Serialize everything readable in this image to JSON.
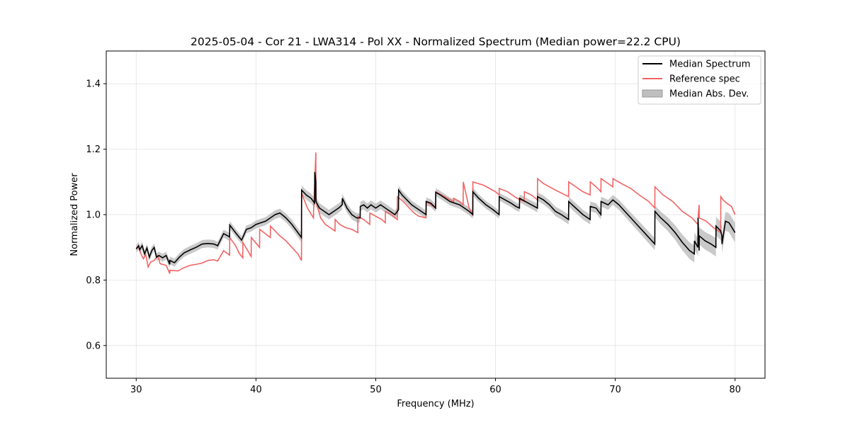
{
  "chart_data": {
    "type": "line",
    "title": "2025-05-04 - Cor 21 - LWA314 - Pol XX - Normalized Spectrum (Median power=22.2 CPU)",
    "xlabel": "Frequency (MHz)",
    "ylabel": "Normalized Power",
    "xlim": [
      27.5,
      82.5
    ],
    "ylim": [
      0.5,
      1.5
    ],
    "xticks": [
      30,
      40,
      50,
      60,
      70,
      80
    ],
    "yticks": [
      0.6,
      0.8,
      1.0,
      1.2,
      1.4
    ],
    "xtick_labels": [
      "30",
      "40",
      "50",
      "60",
      "70",
      "80"
    ],
    "ytick_labels": [
      "0.6",
      "0.8",
      "1.0",
      "1.2",
      "1.4"
    ],
    "grid": true,
    "legend_position": "top-right",
    "legend": [
      "Median Spectrum",
      "Reference spec",
      "Median Abs. Dev."
    ],
    "series": [
      {
        "name": "Median Spectrum",
        "color": "#000000",
        "x": [
          30.0,
          30.2,
          30.3,
          30.5,
          30.7,
          30.9,
          31.1,
          31.3,
          31.5,
          31.7,
          31.9,
          32.2,
          32.5,
          32.8,
          32.81,
          33.2,
          33.6,
          34.0,
          34.5,
          35.0,
          35.5,
          36.0,
          36.5,
          36.8,
          37.3,
          37.8,
          37.81,
          38.4,
          38.8,
          39.2,
          39.6,
          40.0,
          40.4,
          40.8,
          41.2,
          41.6,
          42.0,
          42.5,
          43.0,
          43.5,
          43.8,
          43.81,
          44.2,
          44.6,
          44.9,
          44.91,
          45.0,
          45.01,
          45.3,
          45.7,
          46.1,
          46.5,
          46.9,
          47.2,
          47.21,
          47.6,
          48.0,
          48.4,
          48.7,
          48.71,
          49.0,
          49.3,
          49.6,
          50.0,
          50.4,
          50.8,
          51.2,
          51.6,
          51.9,
          51.91,
          52.2,
          52.6,
          53.0,
          53.4,
          53.8,
          54.2,
          54.21,
          54.6,
          55.0,
          55.01,
          55.4,
          55.8,
          56.2,
          56.6,
          57.0,
          57.4,
          57.8,
          58.1,
          58.11,
          58.6,
          59.2,
          59.8,
          60.3,
          60.31,
          60.8,
          61.3,
          61.7,
          62.0,
          62.01,
          62.5,
          63.0,
          63.5,
          63.51,
          64.0,
          64.5,
          65.0,
          65.5,
          66.1,
          66.11,
          66.7,
          67.3,
          67.9,
          67.91,
          68.4,
          68.8,
          68.81,
          69.4,
          69.8,
          70.3,
          70.8,
          71.3,
          71.8,
          72.3,
          72.8,
          73.3,
          73.31,
          73.8,
          74.4,
          75.0,
          75.6,
          76.2,
          76.6,
          76.61,
          76.9,
          76.91,
          77.0,
          77.01,
          77.5,
          78.0,
          78.4,
          78.41,
          78.8,
          78.9,
          78.91,
          79.2,
          79.5,
          80.0
        ],
        "y": [
          0.895,
          0.905,
          0.893,
          0.905,
          0.88,
          0.898,
          0.87,
          0.89,
          0.9,
          0.87,
          0.875,
          0.868,
          0.875,
          0.848,
          0.86,
          0.853,
          0.87,
          0.883,
          0.892,
          0.9,
          0.91,
          0.912,
          0.91,
          0.905,
          0.942,
          0.932,
          0.968,
          0.94,
          0.922,
          0.955,
          0.96,
          0.97,
          0.975,
          0.98,
          0.99,
          1.0,
          1.005,
          0.99,
          0.97,
          0.945,
          0.93,
          1.075,
          1.06,
          1.05,
          1.035,
          1.13,
          1.1,
          1.04,
          1.02,
          1.01,
          1.0,
          1.01,
          1.02,
          1.03,
          1.05,
          1.02,
          1.0,
          0.99,
          0.99,
          1.025,
          1.03,
          1.02,
          1.03,
          1.02,
          1.03,
          1.02,
          1.01,
          1.0,
          1.015,
          1.075,
          1.06,
          1.045,
          1.03,
          1.02,
          1.01,
          1.0,
          1.04,
          1.035,
          1.02,
          1.068,
          1.06,
          1.05,
          1.04,
          1.035,
          1.03,
          1.02,
          1.01,
          1.0,
          1.07,
          1.05,
          1.03,
          1.015,
          1.0,
          1.055,
          1.045,
          1.035,
          1.025,
          1.02,
          1.05,
          1.04,
          1.03,
          1.02,
          1.055,
          1.045,
          1.03,
          1.01,
          1.0,
          0.985,
          1.04,
          1.02,
          1.0,
          0.985,
          1.025,
          1.02,
          1.0,
          1.04,
          1.03,
          1.045,
          1.03,
          1.01,
          0.99,
          0.97,
          0.95,
          0.93,
          0.91,
          1.01,
          0.99,
          0.97,
          0.945,
          0.915,
          0.89,
          0.88,
          0.92,
          0.9,
          0.99,
          0.89,
          0.935,
          0.92,
          0.91,
          0.9,
          0.965,
          0.95,
          0.935,
          0.91,
          0.98,
          0.975,
          0.945
        ]
      },
      {
        "name": "Reference spec",
        "color": "#f06464",
        "x": [
          30.0,
          30.2,
          30.4,
          30.6,
          30.8,
          31.0,
          31.2,
          31.5,
          31.8,
          32.0,
          32.5,
          32.8,
          32.81,
          33.5,
          34.0,
          34.5,
          35.0,
          35.5,
          36.0,
          36.5,
          36.8,
          37.3,
          37.8,
          37.81,
          38.3,
          38.6,
          38.9,
          38.91,
          39.6,
          39.61,
          40.3,
          40.31,
          41.2,
          41.21,
          42.0,
          42.5,
          43.0,
          43.5,
          43.8,
          43.81,
          44.3,
          44.8,
          44.81,
          45.0,
          45.01,
          45.4,
          45.8,
          46.2,
          46.6,
          46.61,
          47.0,
          47.5,
          48.0,
          48.5,
          48.51,
          49.0,
          49.5,
          49.51,
          50.0,
          50.5,
          50.8,
          50.81,
          51.3,
          51.8,
          51.81,
          52.3,
          52.8,
          53.2,
          53.6,
          54.2,
          54.21,
          54.6,
          55.0,
          55.01,
          55.5,
          56.0,
          56.5,
          56.51,
          57.0,
          57.3,
          57.31,
          57.8,
          58.1,
          58.11,
          59.0,
          60.0,
          60.3,
          60.31,
          61.0,
          61.8,
          62.4,
          62.41,
          63.0,
          63.5,
          63.51,
          64.0,
          65.0,
          66.1,
          66.11,
          66.7,
          67.3,
          67.9,
          67.91,
          68.4,
          68.8,
          68.81,
          69.4,
          69.8,
          69.81,
          70.5,
          71.3,
          72.0,
          72.8,
          73.3,
          73.31,
          74.0,
          74.8,
          75.6,
          76.4,
          76.9,
          76.91,
          77.0,
          77.01,
          77.6,
          78.2,
          78.8,
          78.81,
          79.0,
          79.3,
          79.7,
          80.0
        ],
        "y": [
          0.898,
          0.9,
          0.88,
          0.865,
          0.878,
          0.84,
          0.855,
          0.86,
          0.875,
          0.85,
          0.845,
          0.82,
          0.83,
          0.828,
          0.838,
          0.845,
          0.848,
          0.852,
          0.86,
          0.862,
          0.858,
          0.89,
          0.876,
          0.93,
          0.905,
          0.882,
          0.868,
          0.915,
          0.872,
          0.93,
          0.9,
          0.955,
          0.93,
          0.965,
          0.935,
          0.92,
          0.9,
          0.88,
          0.86,
          1.065,
          1.02,
          0.99,
          1.01,
          1.19,
          1.04,
          0.99,
          0.97,
          0.96,
          0.95,
          0.985,
          0.97,
          0.96,
          0.955,
          0.945,
          0.995,
          0.985,
          0.97,
          1.005,
          0.995,
          0.985,
          0.975,
          1.01,
          1.0,
          0.985,
          1.055,
          1.04,
          1.02,
          1.005,
          0.995,
          0.99,
          1.04,
          1.03,
          1.02,
          1.07,
          1.06,
          1.05,
          1.04,
          1.05,
          1.04,
          1.03,
          1.1,
          1.02,
          1.0,
          1.1,
          1.09,
          1.07,
          1.06,
          1.08,
          1.07,
          1.05,
          1.04,
          1.07,
          1.06,
          1.045,
          1.11,
          1.095,
          1.075,
          1.055,
          1.1,
          1.085,
          1.07,
          1.06,
          1.1,
          1.085,
          1.07,
          1.11,
          1.095,
          1.085,
          1.11,
          1.095,
          1.08,
          1.06,
          1.04,
          1.02,
          1.085,
          1.06,
          1.04,
          1.01,
          0.99,
          0.97,
          0.99,
          1.03,
          0.99,
          0.98,
          0.96,
          0.945,
          1.055,
          1.045,
          1.035,
          1.025,
          1.0
        ]
      }
    ],
    "band": {
      "name": "Median Abs. Dev.",
      "color": "#bfbfbf",
      "description": "shaded band around Median Spectrum",
      "mad": [
        [
          30,
          0.012
        ],
        [
          40,
          0.012
        ],
        [
          45,
          0.015
        ],
        [
          55,
          0.012
        ],
        [
          62,
          0.012
        ],
        [
          66,
          0.015
        ],
        [
          70,
          0.015
        ],
        [
          73.3,
          0.018
        ],
        [
          76,
          0.025
        ],
        [
          80,
          0.03
        ]
      ]
    }
  }
}
